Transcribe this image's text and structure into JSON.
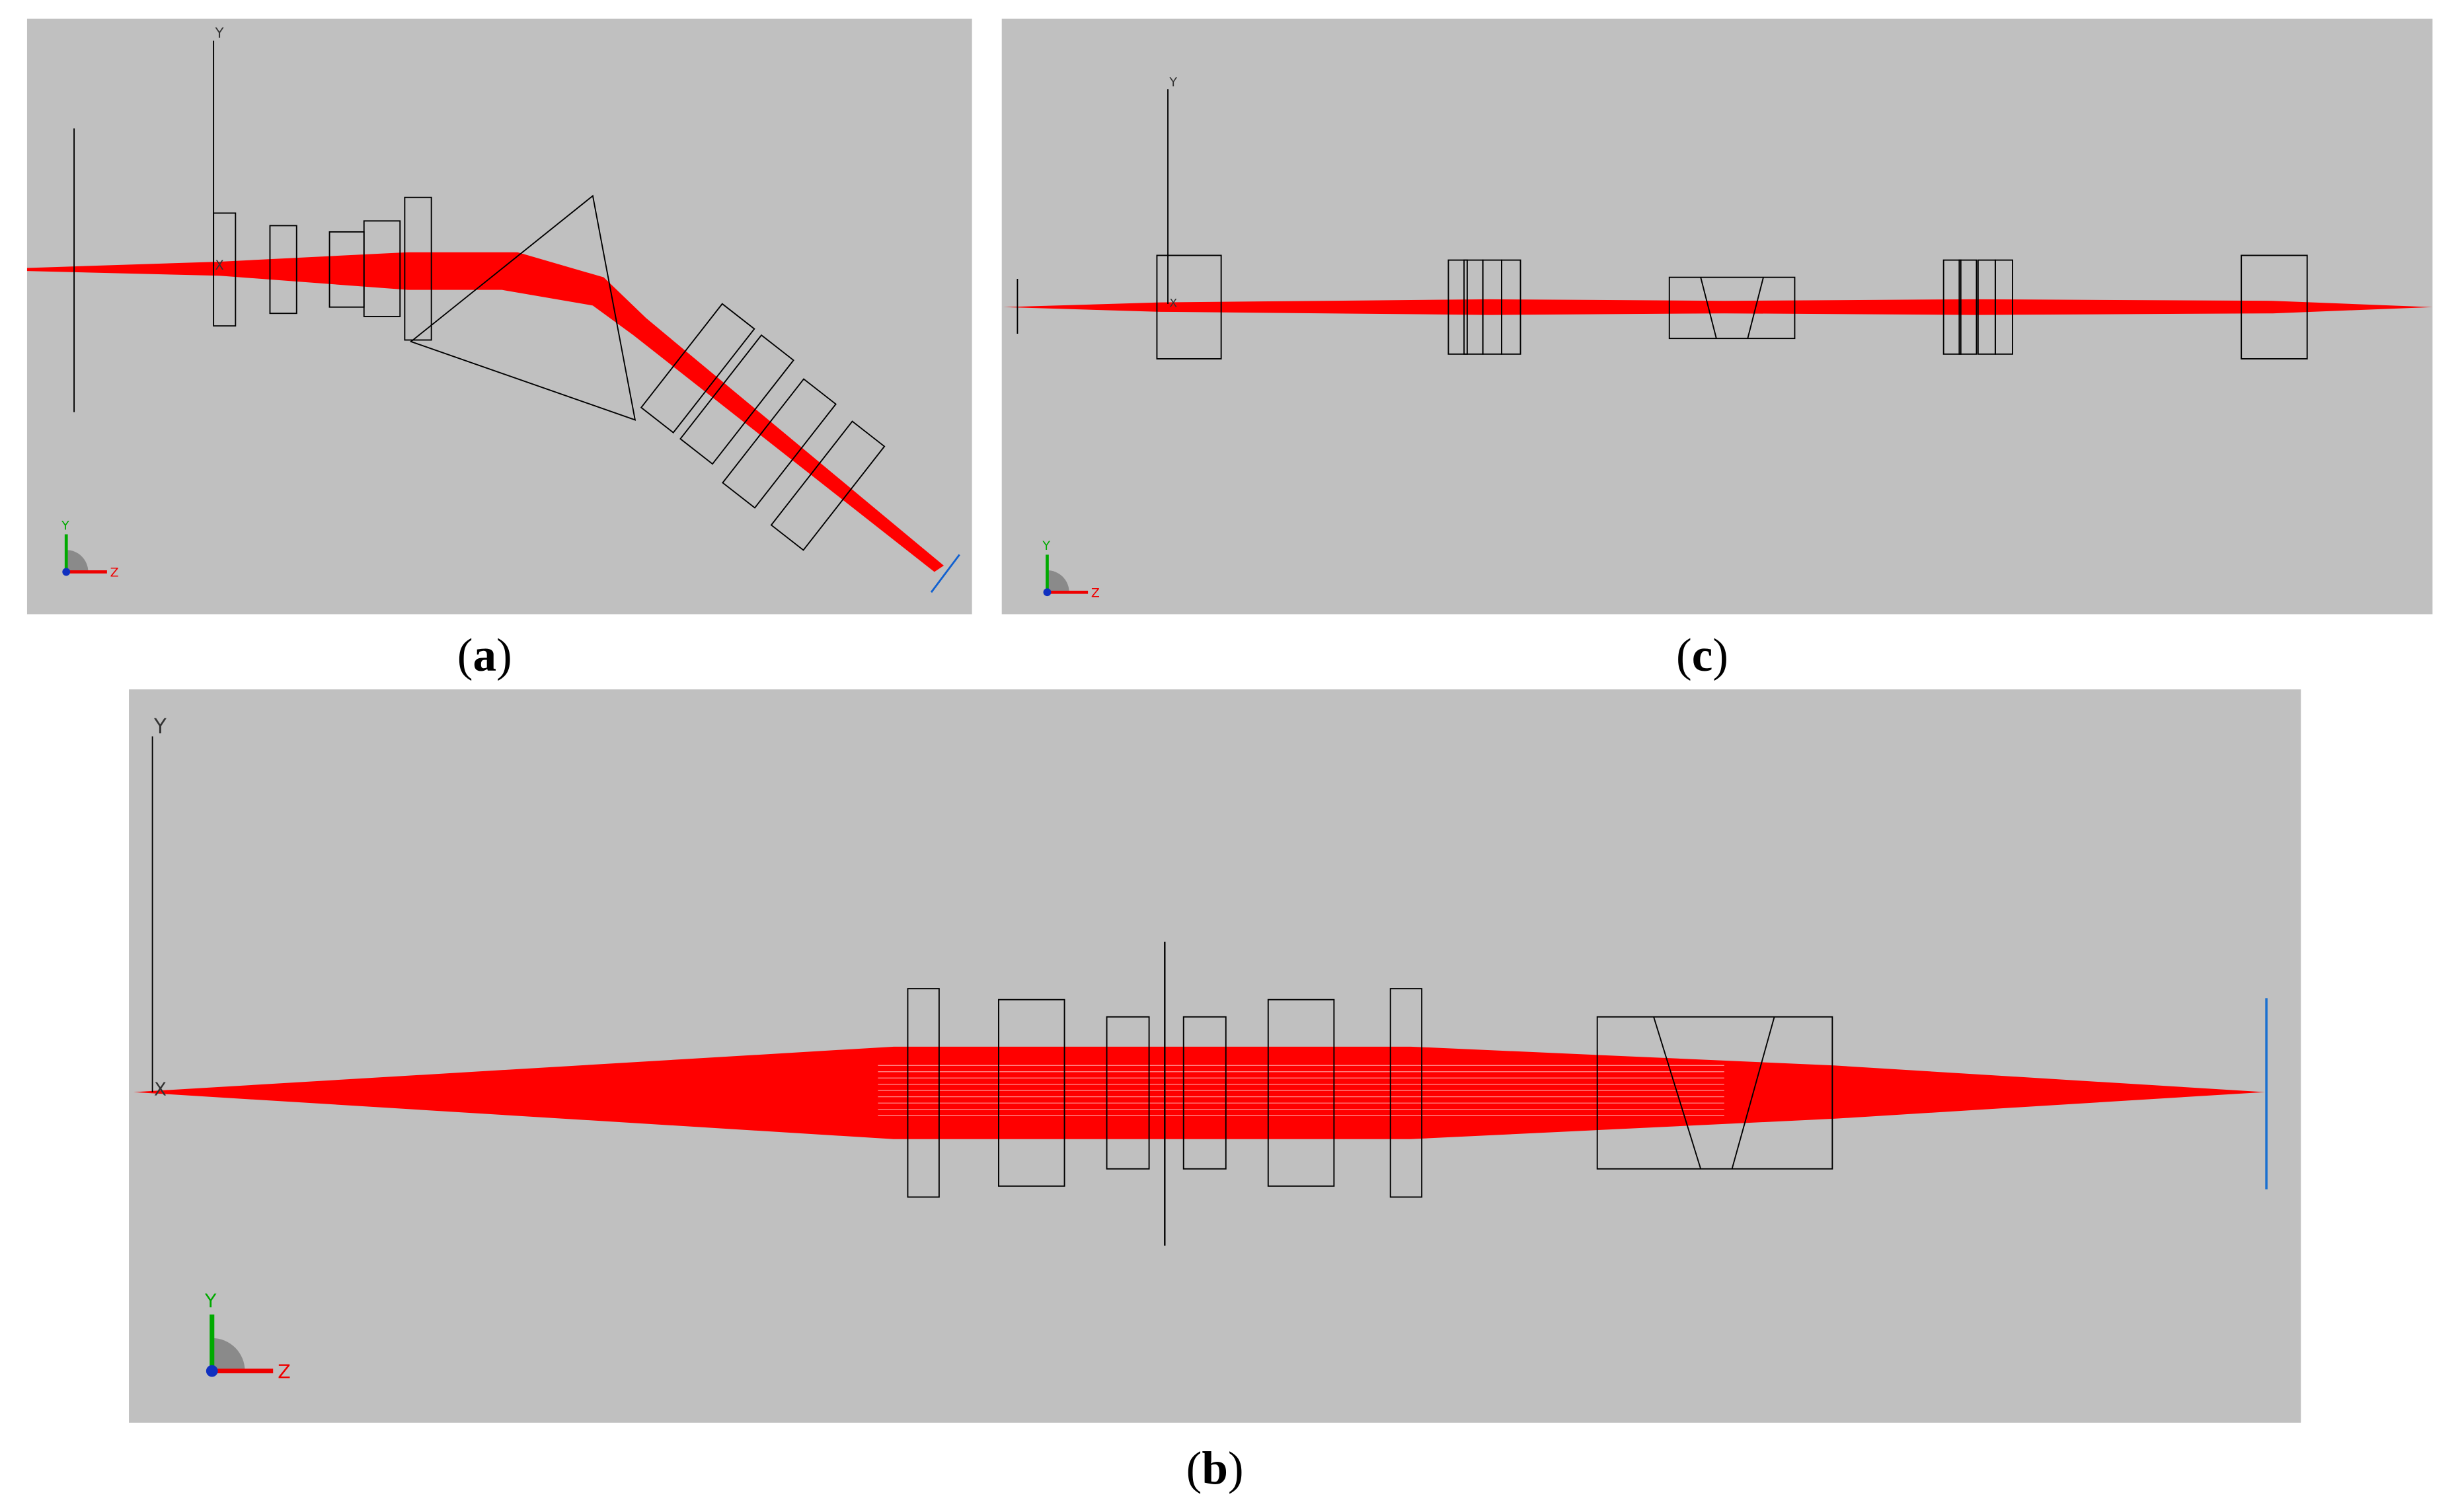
{
  "panels": [
    {
      "caption": [
        "(",
        "a",
        ")"
      ],
      "y_axis": "Y",
      "x_axis": "X",
      "triad_y": "Y",
      "triad_z": "Z"
    },
    {
      "caption": [
        "(",
        "c",
        ")"
      ],
      "y_axis": "Y",
      "x_axis": "X",
      "triad_y": "Y",
      "triad_z": "Z"
    },
    {
      "caption": [
        "(",
        "b",
        ")"
      ],
      "y_axis": "Y",
      "x_axis": "X",
      "triad_y": "Y",
      "triad_z": "Z"
    }
  ]
}
